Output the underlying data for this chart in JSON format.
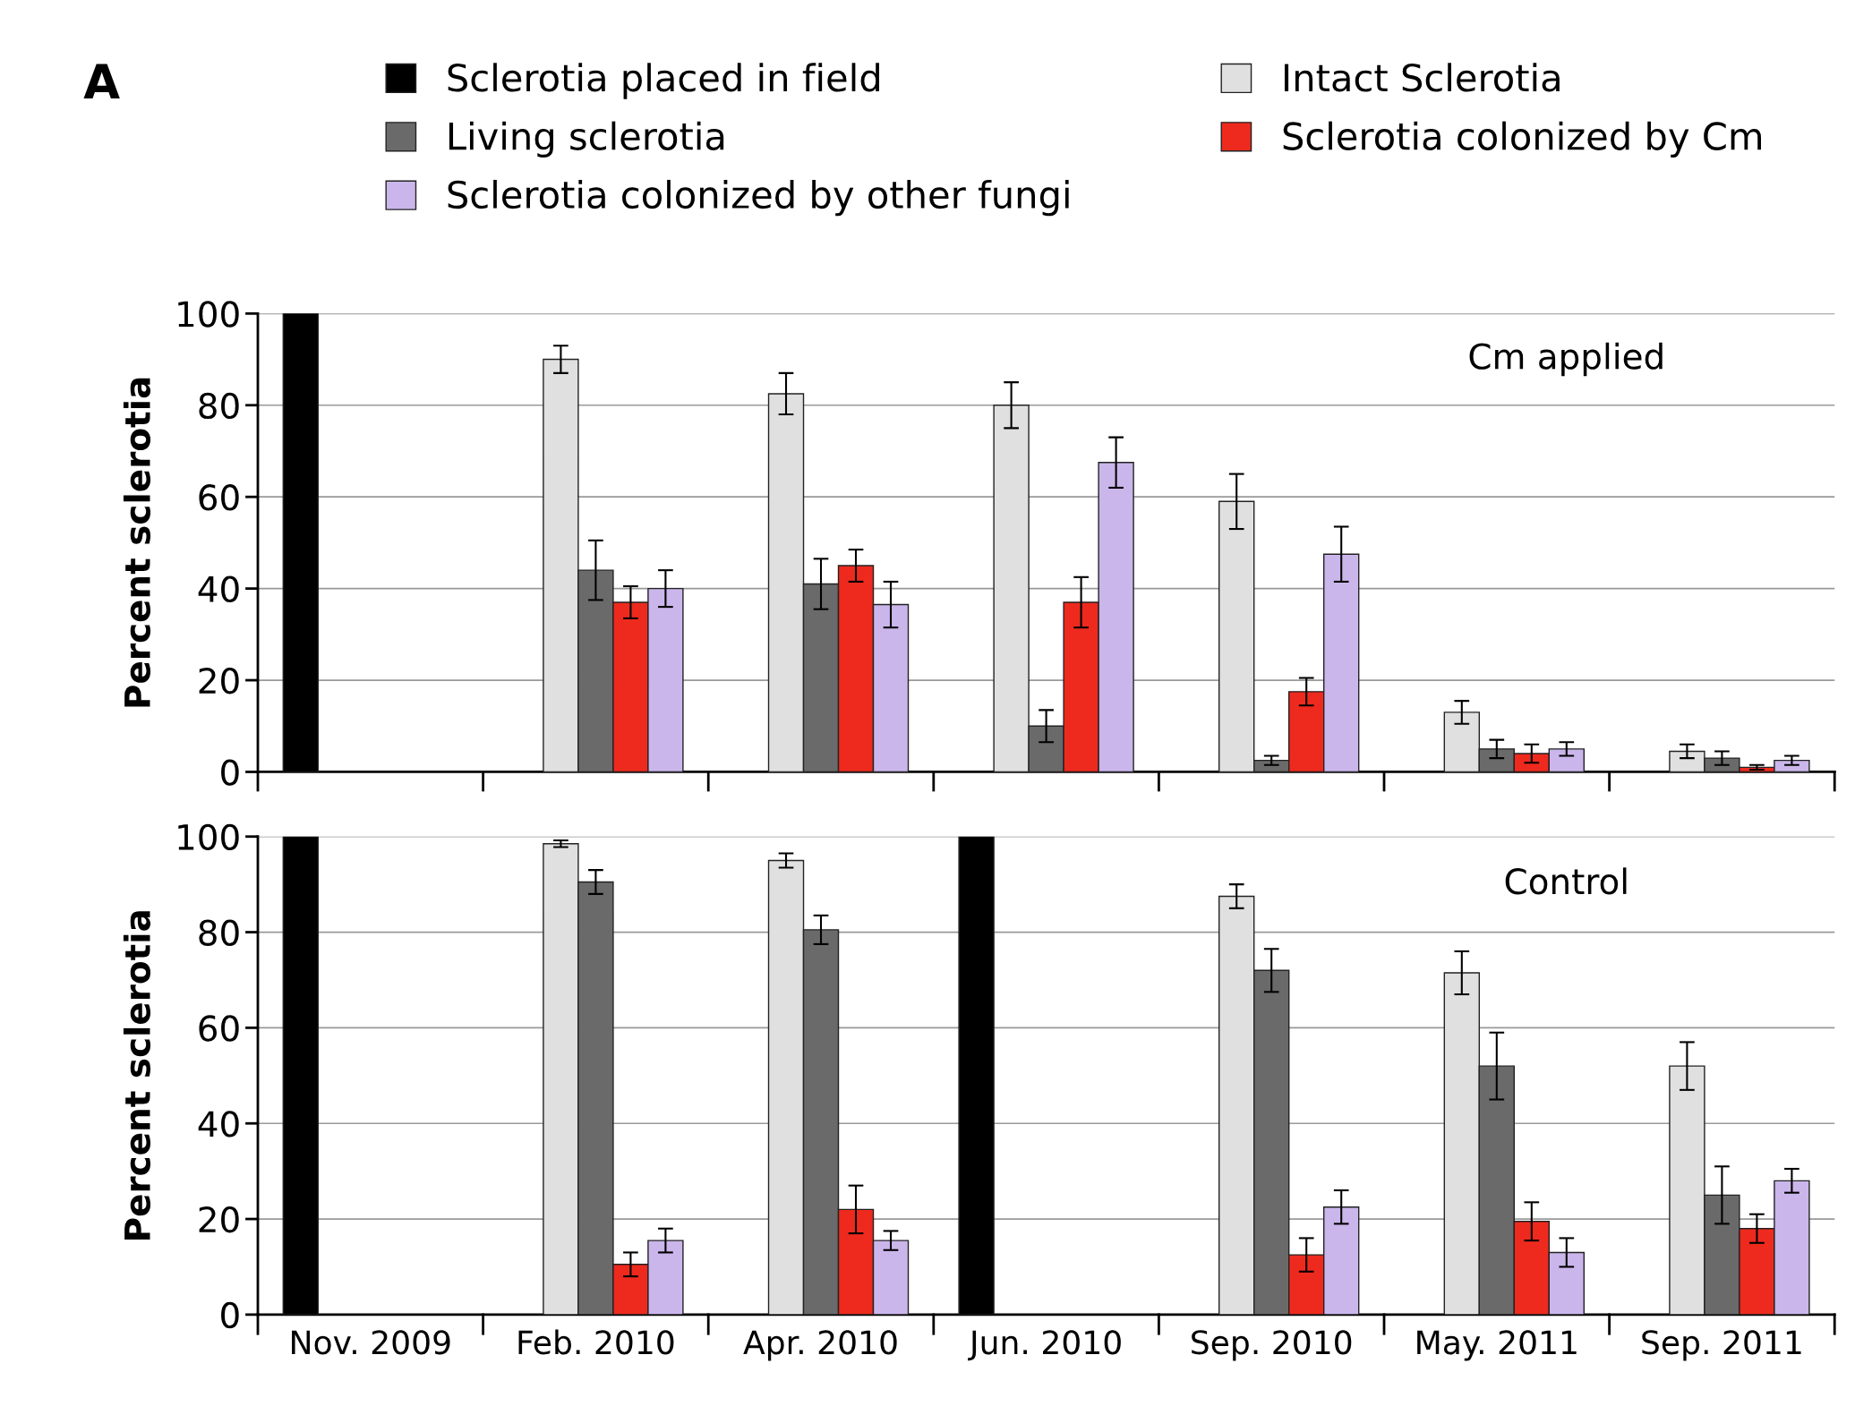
{
  "chart_data": [
    {
      "type": "bar",
      "annotations": [
        "A",
        "Cm applied"
      ],
      "ylabel": "Percent sclerotia",
      "categories": [
        null,
        null,
        null,
        null,
        null,
        null,
        null
      ],
      "series": [
        {
          "name": "Sclerotia placed in field",
          "color": "#000000",
          "values": [
            100,
            null,
            null,
            null,
            null,
            null,
            null
          ],
          "errors": [
            null,
            null,
            null,
            null,
            null,
            null,
            null
          ]
        },
        {
          "name": "Intact Sclerotia",
          "color": "#e0e0e0",
          "values": [
            null,
            90,
            82.5,
            80,
            59,
            13,
            4.5
          ],
          "errors": [
            null,
            3,
            4.5,
            5,
            6,
            2.5,
            1.5
          ]
        },
        {
          "name": "Living sclerotia",
          "color": "#6a6a6a",
          "values": [
            null,
            44,
            41,
            10,
            2.5,
            5,
            3
          ],
          "errors": [
            null,
            6.5,
            5.5,
            3.5,
            1,
            2,
            1.5
          ]
        },
        {
          "name": "Sclerotia colonized by Cm",
          "color": "#ee2a1e",
          "values": [
            null,
            37,
            45,
            37,
            17.5,
            4,
            1
          ],
          "errors": [
            null,
            3.5,
            3.5,
            5.5,
            3,
            2,
            0.5
          ]
        },
        {
          "name": "Sclerotia colonized by other fungi",
          "color": "#cbb6ec",
          "values": [
            null,
            40,
            36.5,
            67.5,
            47.5,
            5,
            2.5
          ],
          "errors": [
            null,
            4,
            5,
            5.5,
            6,
            1.5,
            1
          ]
        }
      ],
      "ylim": [
        0,
        100
      ],
      "yticks": [
        0,
        20,
        40,
        60,
        80,
        100
      ],
      "grid": "y",
      "legend": "top",
      "tick_labels": "y"
    },
    {
      "type": "bar",
      "annotations": [
        "Control"
      ],
      "ylabel": "Percent sclerotia",
      "categories": [
        "Nov. 2009",
        "Feb. 2010",
        "Apr. 2010",
        "Jun. 2010",
        "Sep. 2010",
        "May. 2011",
        "Sep. 2011"
      ],
      "series": [
        {
          "color": "#000000",
          "values": [
            100,
            null,
            null,
            100,
            null,
            null,
            null
          ],
          "errors": [
            null,
            null,
            null,
            null,
            null,
            null,
            null
          ]
        },
        {
          "color": "#e0e0e0",
          "values": [
            null,
            98.5,
            95,
            null,
            87.5,
            71.5,
            52
          ],
          "errors": [
            null,
            0.7,
            1.5,
            null,
            2.5,
            4.5,
            5
          ]
        },
        {
          "color": "#6a6a6a",
          "values": [
            null,
            90.5,
            80.5,
            null,
            72,
            52,
            25
          ],
          "errors": [
            null,
            2.5,
            3,
            null,
            4.5,
            7,
            6
          ]
        },
        {
          "color": "#ee2a1e",
          "values": [
            null,
            10.5,
            22,
            null,
            12.5,
            19.5,
            18
          ],
          "errors": [
            null,
            2.5,
            5,
            null,
            3.5,
            4,
            3
          ]
        },
        {
          "color": "#cbb6ec",
          "values": [
            null,
            15.5,
            15.5,
            null,
            22.5,
            13,
            28
          ],
          "errors": [
            null,
            2.5,
            2,
            null,
            3.5,
            3,
            2.5
          ]
        }
      ],
      "ylim": [
        0,
        100
      ],
      "yticks": [
        0,
        20,
        40,
        60,
        80,
        100
      ],
      "grid": "y"
    }
  ]
}
